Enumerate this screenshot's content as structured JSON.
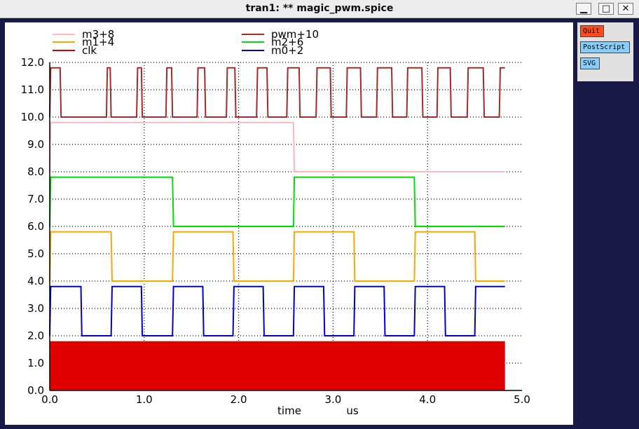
{
  "window": {
    "title": "tran1: ** magic_pwm.spice",
    "controls": {
      "minimize": "▁",
      "maximize": "□",
      "close": "✕"
    }
  },
  "side_buttons": {
    "quit": "Quit",
    "postscript": "PostScript",
    "svg": "SVG"
  },
  "colors": {
    "desktop": "#191946",
    "panel": "#e0e0e0",
    "quit": "#ff4a1a",
    "export": "#87cefa"
  },
  "chart_data": {
    "type": "line",
    "xlabel": "time",
    "xunit": "us",
    "xlim": [
      0,
      5
    ],
    "ylim": [
      0,
      12
    ],
    "x_ticks": [
      "0.0",
      "1.0",
      "2.0",
      "3.0",
      "4.0",
      "5.0"
    ],
    "y_ticks": [
      "0.0",
      "1.0",
      "2.0",
      "3.0",
      "4.0",
      "5.0",
      "6.0",
      "7.0",
      "8.0",
      "9.0",
      "10.0",
      "11.0",
      "12.0"
    ],
    "grid": true,
    "legend": [
      {
        "name": "m3+8",
        "color": "#ffb6c1"
      },
      {
        "name": "pwm+10",
        "color": "#a52a2a"
      },
      {
        "name": "m1+4",
        "color": "#ffa500"
      },
      {
        "name": "m2+6",
        "color": "#00e000"
      },
      {
        "name": "clk",
        "color": "#e00000"
      },
      {
        "name": "m0+2",
        "color": "#0000d0"
      }
    ],
    "series": [
      {
        "name": "m3+8",
        "color": "#ffb6c1",
        "x": [
          0,
          0.01,
          2.58,
          2.59,
          4.82
        ],
        "y": [
          8.0,
          9.8,
          9.8,
          8.0,
          8.0
        ]
      },
      {
        "name": "m2+6",
        "color": "#00e000",
        "x": [
          0,
          0.01,
          1.3,
          1.31,
          2.58,
          2.59,
          3.86,
          3.87,
          4.82
        ],
        "y": [
          6.0,
          7.8,
          7.8,
          6.0,
          6.0,
          7.8,
          7.8,
          6.0,
          6.0
        ]
      },
      {
        "name": "m1+4",
        "color": "#ffa500",
        "x": [
          0,
          0.01,
          0.65,
          0.66,
          1.3,
          1.31,
          1.94,
          1.95,
          2.58,
          2.59,
          3.22,
          3.23,
          3.86,
          3.87,
          4.5,
          4.51,
          4.82
        ],
        "y": [
          4.0,
          5.8,
          5.8,
          4.0,
          4.0,
          5.8,
          5.8,
          4.0,
          4.0,
          5.8,
          5.8,
          4.0,
          4.0,
          5.8,
          5.8,
          4.0,
          4.0
        ]
      },
      {
        "name": "m0+2",
        "color": "#0000d0",
        "x": [
          0,
          0.01,
          0.33,
          0.34,
          0.65,
          0.66,
          0.97,
          0.98,
          1.3,
          1.31,
          1.62,
          1.63,
          1.94,
          1.95,
          2.26,
          2.27,
          2.58,
          2.59,
          2.9,
          2.91,
          3.22,
          3.23,
          3.54,
          3.55,
          3.86,
          3.87,
          4.18,
          4.19,
          4.5,
          4.51,
          4.82
        ],
        "y": [
          2.0,
          3.8,
          3.8,
          2.0,
          2.0,
          3.8,
          3.8,
          2.0,
          2.0,
          3.8,
          3.8,
          2.0,
          2.0,
          3.8,
          3.8,
          2.0,
          2.0,
          3.8,
          3.8,
          2.0,
          2.0,
          3.8,
          3.8,
          2.0,
          2.0,
          3.8,
          3.8,
          2.0,
          2.0,
          3.8,
          3.8
        ]
      },
      {
        "name": "pwm+10",
        "color": "#a52a2a",
        "x": [
          0.0,
          0.01,
          0.11,
          0.12,
          0.6,
          0.61,
          0.64,
          0.65,
          0.92,
          0.93,
          0.97,
          0.98,
          1.23,
          1.24,
          1.29,
          1.3,
          1.56,
          1.57,
          1.64,
          1.65,
          1.87,
          1.88,
          1.96,
          1.97,
          2.19,
          2.2,
          2.3,
          2.31,
          2.51,
          2.52,
          2.64,
          2.65,
          2.82,
          2.83,
          2.97,
          2.98,
          3.14,
          3.15,
          3.29,
          3.3,
          3.46,
          3.47,
          3.62,
          3.63,
          3.78,
          3.79,
          3.94,
          3.95,
          4.1,
          4.11,
          4.24,
          4.25,
          4.42,
          4.43,
          4.59,
          4.6,
          4.76,
          4.77,
          4.82
        ],
        "y": [
          10.0,
          11.8,
          11.8,
          10.0,
          10.0,
          11.8,
          11.8,
          10.0,
          10.0,
          11.8,
          11.8,
          10.0,
          10.0,
          11.8,
          11.8,
          10.0,
          10.0,
          11.8,
          11.8,
          10.0,
          10.0,
          11.8,
          11.8,
          10.0,
          10.0,
          11.8,
          11.8,
          10.0,
          10.0,
          11.8,
          11.8,
          10.0,
          10.0,
          11.8,
          11.8,
          10.0,
          10.0,
          11.8,
          11.8,
          10.0,
          10.0,
          11.8,
          11.8,
          10.0,
          10.0,
          11.8,
          11.8,
          10.0,
          10.0,
          11.8,
          11.8,
          10.0,
          10.0,
          11.8,
          11.8,
          10.0,
          10.0,
          11.8,
          11.8
        ]
      },
      {
        "name": "clk",
        "color": "#e00000",
        "fill": true,
        "x": [
          0,
          4.82
        ],
        "y": [
          1.8,
          1.8
        ],
        "baseline": 0
      }
    ]
  }
}
